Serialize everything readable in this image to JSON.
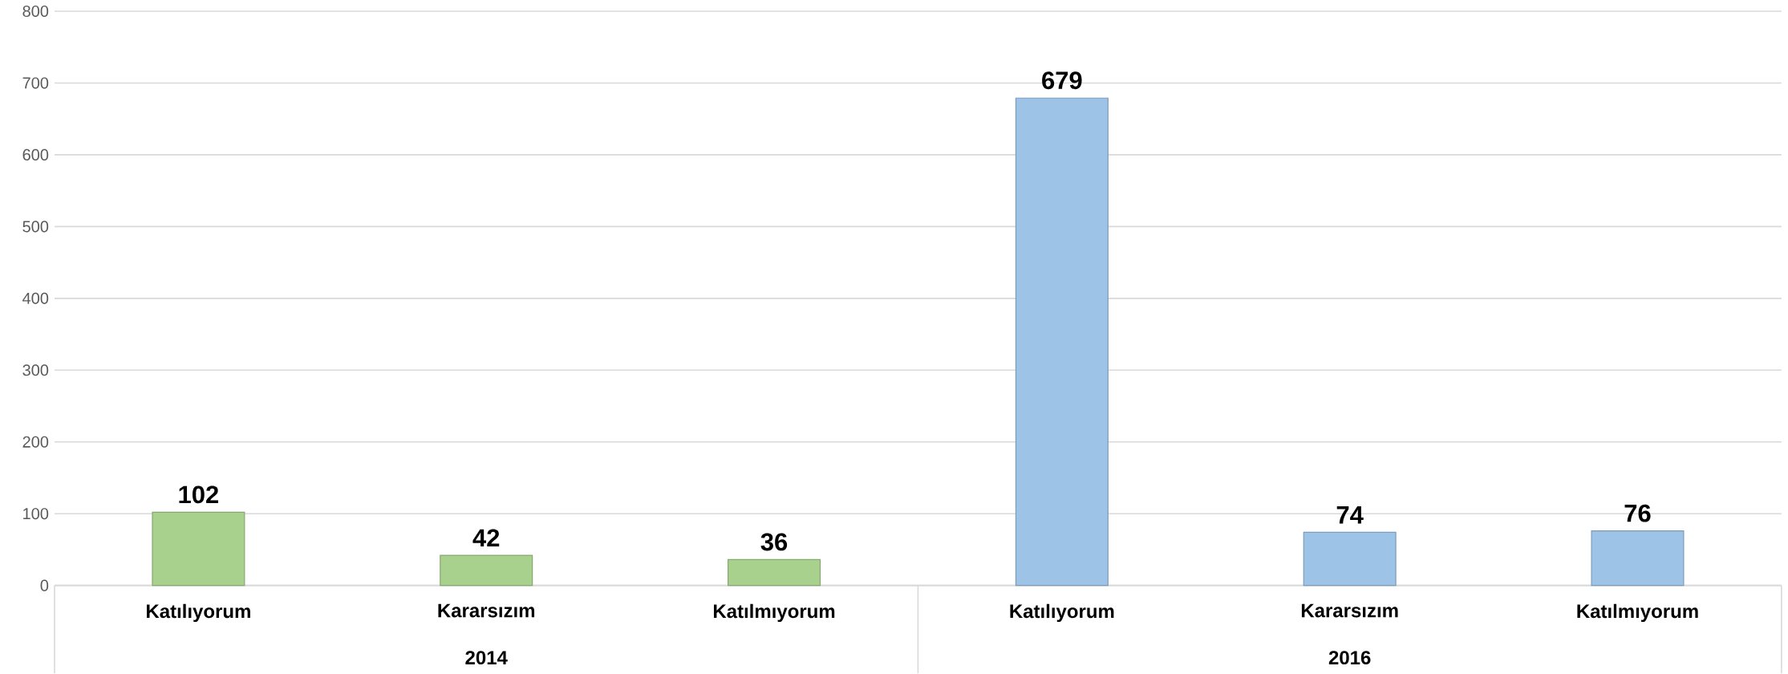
{
  "chart_data": {
    "type": "bar",
    "categories": [
      "Katılıyorum",
      "Kararsızım",
      "Katılmıyorum",
      "Katılıyorum",
      "Kararsızım",
      "Katılmıyorum"
    ],
    "values": [
      102,
      42,
      36,
      679,
      74,
      76
    ],
    "colors": [
      "#a9d18e",
      "#a9d18e",
      "#a9d18e",
      "#9dc3e6",
      "#9dc3e6",
      "#9dc3e6"
    ],
    "ylim": [
      0,
      800
    ],
    "yticks": [
      0,
      100,
      200,
      300,
      400,
      500,
      600,
      700,
      800
    ],
    "grid": "y",
    "data_labels": true,
    "annotations": [
      "2014",
      "2016"
    ]
  }
}
